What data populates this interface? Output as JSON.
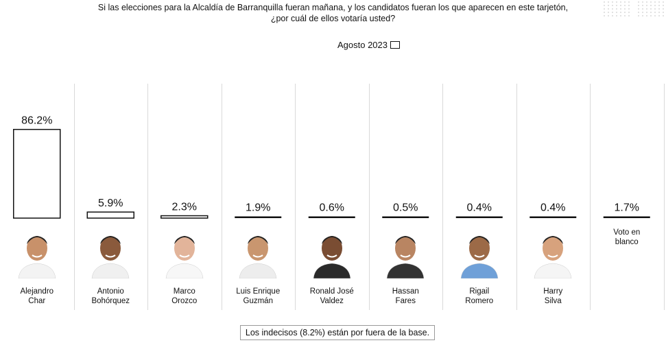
{
  "header": {
    "question_line1": "Si las elecciones para la Alcaldía de Barranquilla fueran mañana, y los candidatos fueran los que aparecen en este tarjetón,",
    "question_line2": "¿por cuál de ellos votaría usted?",
    "legend_label": "Agosto 2023"
  },
  "chart_data": {
    "type": "bar",
    "title": "",
    "xlabel": "",
    "ylabel": "",
    "ylim": [
      0,
      100
    ],
    "grid": false,
    "legend": "top-center",
    "categories": [
      "Alejandro Char",
      "Antonio Bohórquez",
      "Marco Orozco",
      "Luis Enrique Guzmán",
      "Ronald José Valdez",
      "Hassan Fares",
      "Rigail Romero",
      "Harry Silva",
      "Voto en blanco"
    ],
    "series": [
      {
        "name": "Agosto 2023",
        "values": [
          86.2,
          5.9,
          2.3,
          1.9,
          0.6,
          0.5,
          0.4,
          0.4,
          1.7
        ]
      }
    ],
    "data_labels": [
      "86.2%",
      "5.9%",
      "2.3%",
      "1.9%",
      "0.6%",
      "0.5%",
      "0.4%",
      "0.4%",
      "1.7%"
    ]
  },
  "candidates": [
    {
      "name_line1": "Alejandro",
      "name_line2": "Char",
      "photo": "candidate-photo"
    },
    {
      "name_line1": "Antonio",
      "name_line2": "Bohórquez",
      "photo": "candidate-photo"
    },
    {
      "name_line1": "Marco",
      "name_line2": "Orozco",
      "photo": "candidate-photo"
    },
    {
      "name_line1": "Luis Enrique",
      "name_line2": "Guzmán",
      "photo": "candidate-photo"
    },
    {
      "name_line1": "Ronald José",
      "name_line2": "Valdez",
      "photo": "candidate-photo"
    },
    {
      "name_line1": "Hassan",
      "name_line2": "Fares",
      "photo": "candidate-photo"
    },
    {
      "name_line1": "Rigail",
      "name_line2": "Romero",
      "photo": "candidate-photo"
    },
    {
      "name_line1": "Harry",
      "name_line2": "Silva",
      "photo": "candidate-photo"
    },
    {
      "name_line1": "Voto en",
      "name_line2": "blanco",
      "photo": ""
    }
  ],
  "footer": {
    "note": "Los indecisos (8.2%) están por fuera de la base."
  },
  "colors": {
    "bar_fill": "#ffffff",
    "bar_stroke": "#111111",
    "divider": "#d9d9d9"
  }
}
